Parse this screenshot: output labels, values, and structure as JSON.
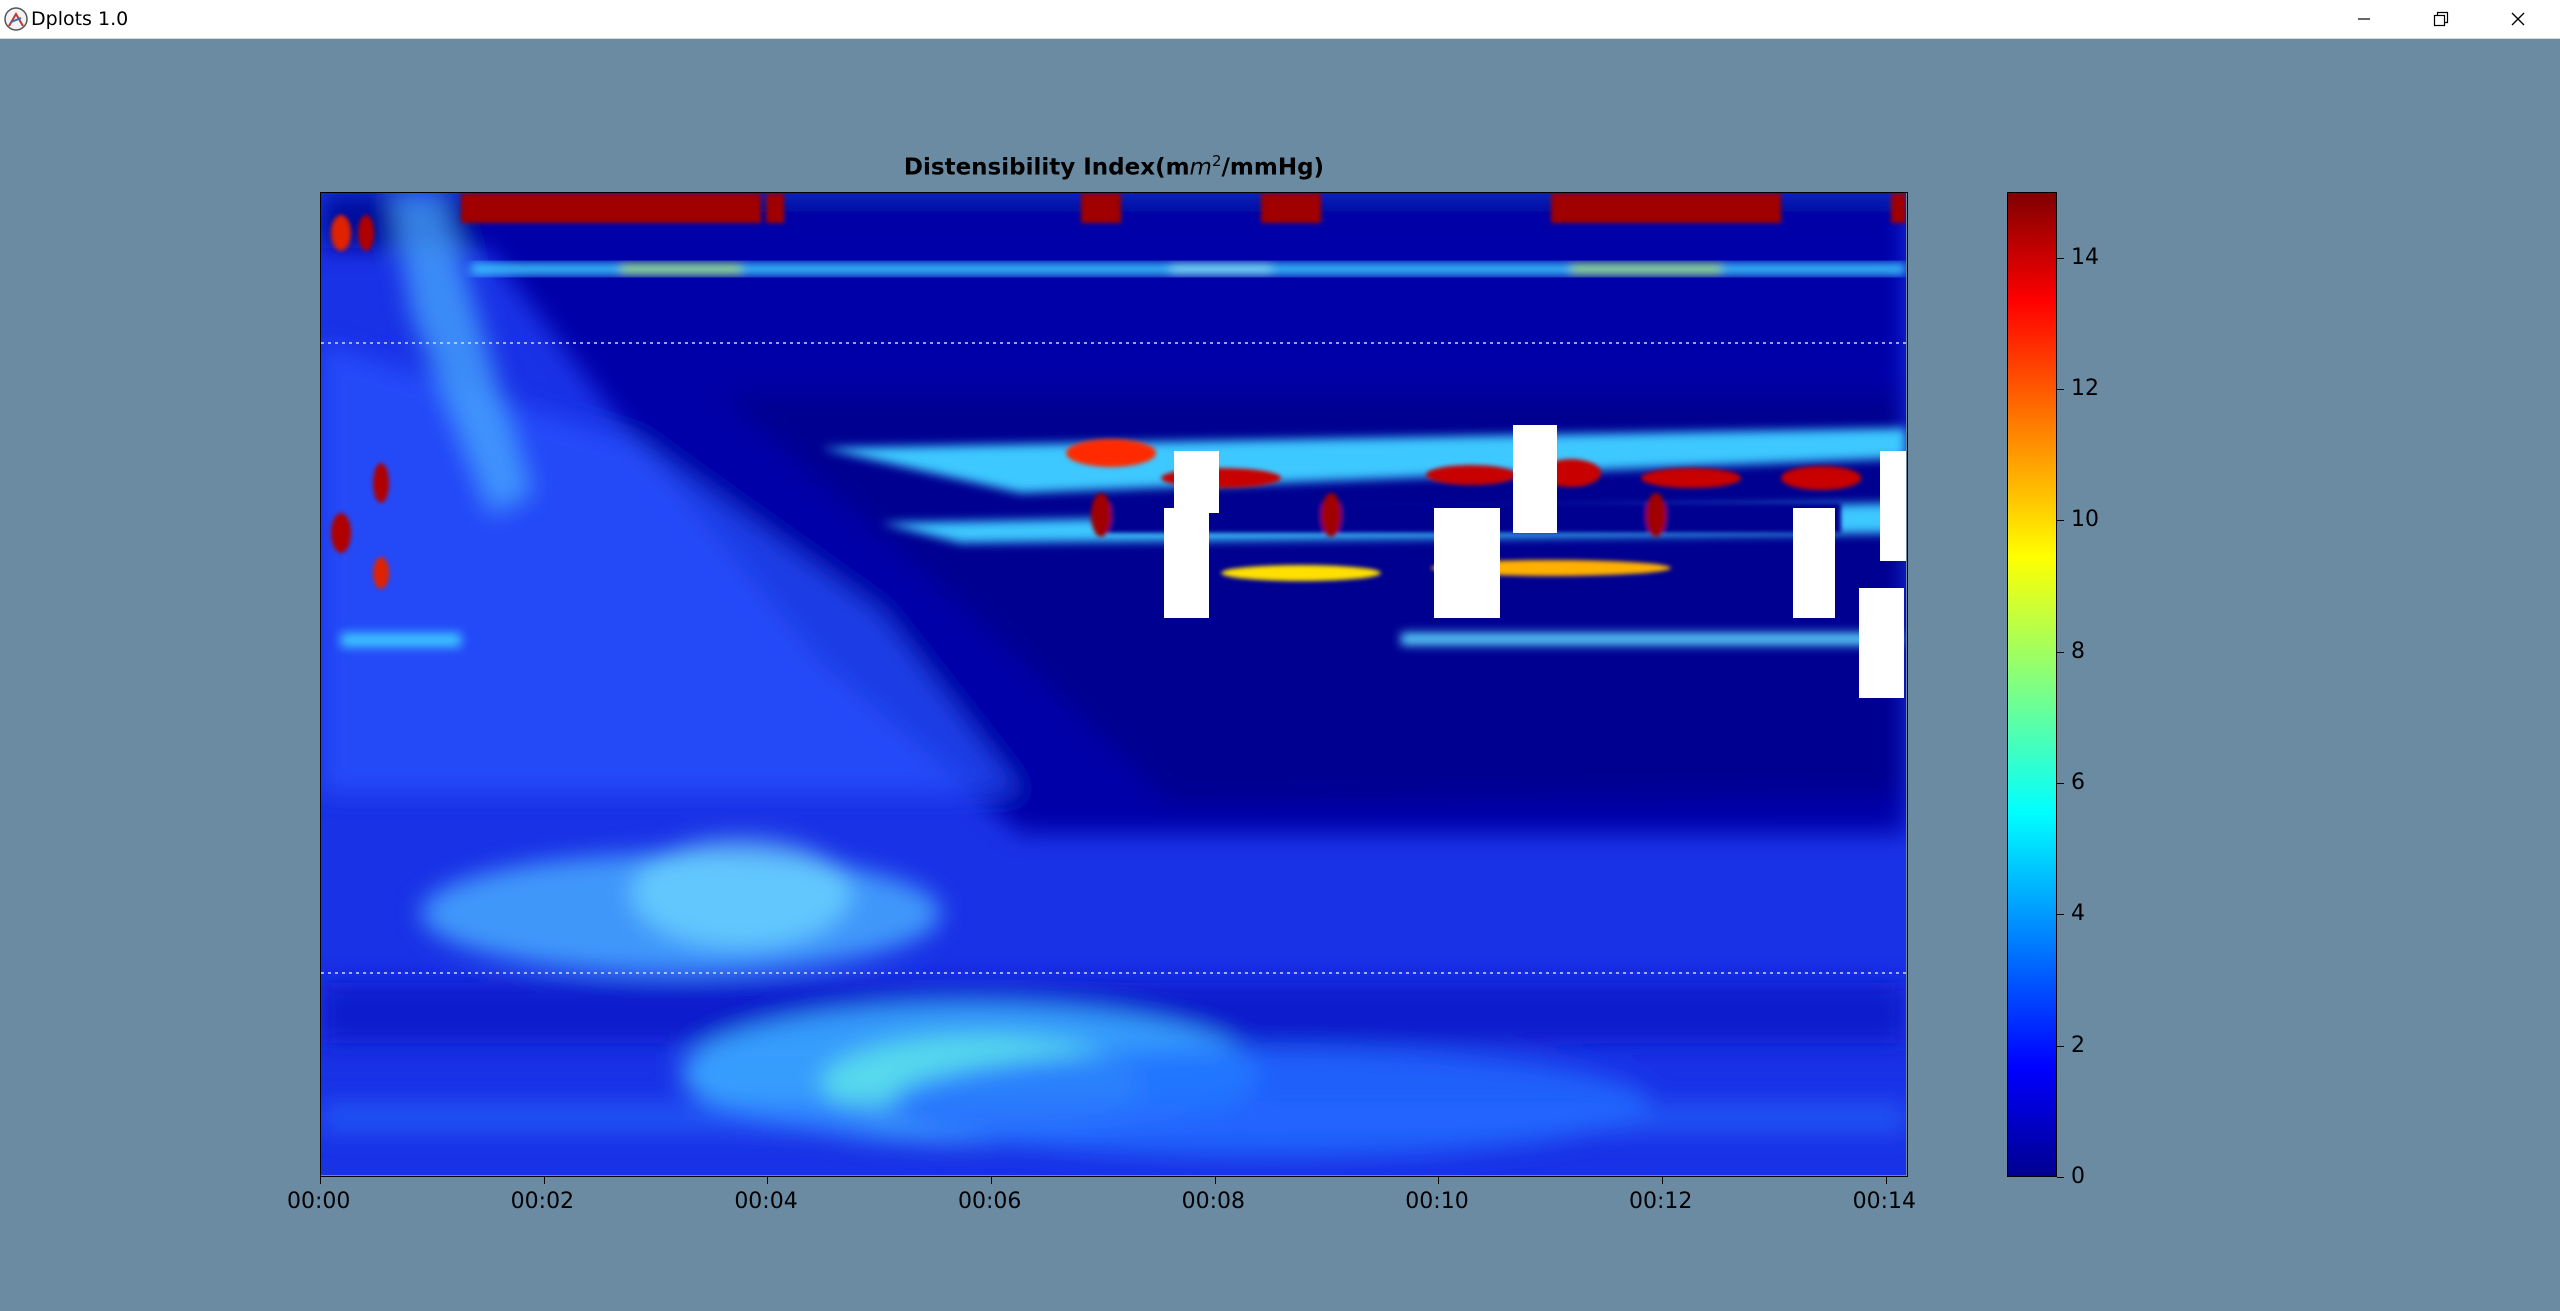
{
  "window": {
    "title": "Dplots 1.0"
  },
  "chart_data": {
    "type": "heatmap",
    "title": "Distensibility Index(m",
    "title_sup": "2",
    "title_mid": "m",
    "title_tail": "/mmHg)",
    "x_tick_labels": [
      "00:00",
      "00:02",
      "00:04",
      "00:06",
      "00:08",
      "00:10",
      "00:12",
      "00:14"
    ],
    "x_ticks_minutes": [
      0,
      2,
      4,
      6,
      8,
      10,
      12,
      14
    ],
    "xlim_minutes": [
      0,
      14.2
    ],
    "colorbar_ticks": [
      "0",
      "2",
      "4",
      "6",
      "8",
      "10",
      "12",
      "14"
    ],
    "colorbar_values": [
      0,
      2,
      4,
      6,
      8,
      10,
      12,
      14
    ],
    "clim": [
      0,
      15
    ],
    "colormap": "jet",
    "reference_lines": "dotted white at two depths",
    "masked_regions": "white rectangles (missing data)"
  },
  "colors": {
    "background": "#6b8ba3",
    "titlebar": "#ffffff"
  }
}
